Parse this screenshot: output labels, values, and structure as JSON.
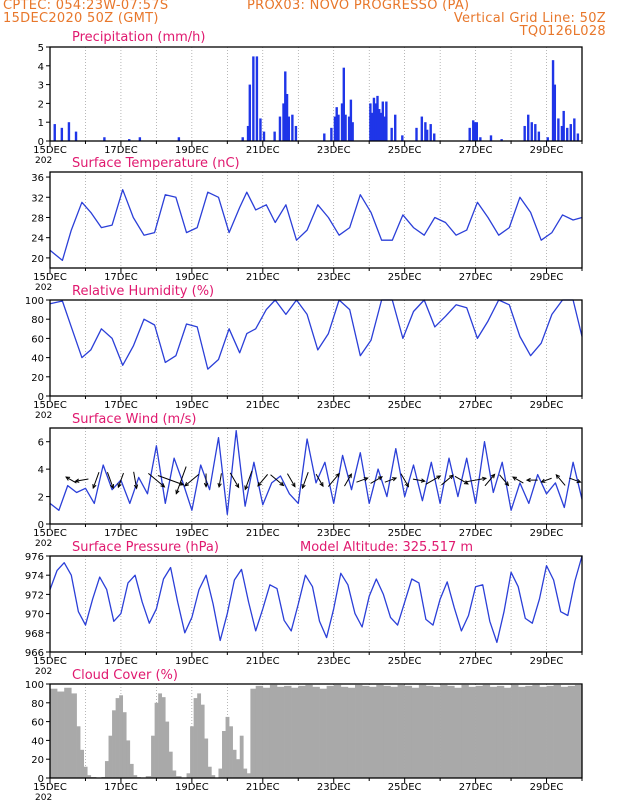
{
  "header": {
    "line1_left": "CPTEC:   054:23W-07:57S",
    "line1_mid": "PROX03: NOVO PROGRESSO (PA)",
    "line2_left": "15DEC2020 50Z (GMT)",
    "line2_right": "Vertical Grid Line: 50Z",
    "line3_right": "TQ0126L028"
  },
  "colors": {
    "header": "#e8772b",
    "title": "#e0196f",
    "series": "#2b3fd8",
    "bars": "#1f35e8",
    "cloud": "#a9a9a9"
  },
  "x_tick_labels": [
    "15DEC",
    "17DEC",
    "19DEC",
    "21DEC",
    "23DEC",
    "25DEC",
    "27DEC",
    "29DEC"
  ],
  "x_cutoff_label": "202",
  "model_altitude": "Model Altitude: 325.517 m",
  "chart_data": [
    {
      "type": "bar",
      "title": "Precipitation (mm/h)",
      "x_range_days": [
        0,
        15
      ],
      "ylim": [
        0,
        5
      ],
      "yticks": [
        "0",
        "1",
        "2",
        "3",
        "4",
        "5"
      ],
      "values": [
        [
          0.1,
          0.9
        ],
        [
          0.3,
          0.7
        ],
        [
          0.5,
          1.0
        ],
        [
          0.7,
          0.5
        ],
        [
          1.5,
          0.2
        ],
        [
          2.2,
          0.1
        ],
        [
          2.5,
          0.2
        ],
        [
          3.6,
          0.2
        ],
        [
          5.4,
          0.2
        ],
        [
          5.55,
          0.8
        ],
        [
          5.6,
          3.0
        ],
        [
          5.7,
          4.5
        ],
        [
          5.8,
          4.5
        ],
        [
          5.9,
          1.2
        ],
        [
          6.0,
          0.5
        ],
        [
          6.3,
          0.5
        ],
        [
          6.45,
          1.3
        ],
        [
          6.55,
          2.0
        ],
        [
          6.6,
          3.7
        ],
        [
          6.65,
          2.5
        ],
        [
          6.7,
          1.3
        ],
        [
          6.8,
          1.4
        ],
        [
          6.9,
          0.8
        ],
        [
          7.7,
          0.4
        ],
        [
          7.9,
          0.7
        ],
        [
          8.0,
          1.3
        ],
        [
          8.05,
          1.8
        ],
        [
          8.1,
          1.4
        ],
        [
          8.2,
          2.0
        ],
        [
          8.25,
          3.9
        ],
        [
          8.3,
          1.4
        ],
        [
          8.4,
          1.3
        ],
        [
          8.45,
          2.2
        ],
        [
          8.5,
          1.0
        ],
        [
          9.0,
          2.0
        ],
        [
          9.05,
          1.5
        ],
        [
          9.1,
          2.3
        ],
        [
          9.15,
          2.0
        ],
        [
          9.2,
          2.4
        ],
        [
          9.25,
          1.7
        ],
        [
          9.3,
          1.5
        ],
        [
          9.35,
          2.1
        ],
        [
          9.4,
          1.3
        ],
        [
          9.45,
          2.1
        ],
        [
          9.6,
          0.7
        ],
        [
          9.7,
          1.4
        ],
        [
          9.9,
          0.3
        ],
        [
          10.3,
          0.7
        ],
        [
          10.45,
          1.3
        ],
        [
          10.55,
          1.0
        ],
        [
          10.6,
          0.6
        ],
        [
          10.7,
          0.9
        ],
        [
          10.8,
          0.4
        ],
        [
          11.8,
          0.7
        ],
        [
          11.9,
          1.1
        ],
        [
          11.95,
          1.0
        ],
        [
          12.0,
          1.0
        ],
        [
          12.1,
          0.2
        ],
        [
          12.4,
          0.3
        ],
        [
          12.7,
          0.1
        ],
        [
          13.35,
          0.8
        ],
        [
          13.45,
          1.4
        ],
        [
          13.55,
          1.0
        ],
        [
          13.65,
          0.9
        ],
        [
          13.75,
          0.5
        ],
        [
          14.0,
          0.2
        ],
        [
          14.15,
          4.3
        ],
        [
          14.2,
          3.0
        ],
        [
          14.3,
          1.2
        ],
        [
          14.4,
          0.8
        ],
        [
          14.45,
          1.6
        ],
        [
          14.55,
          0.7
        ],
        [
          14.65,
          0.9
        ],
        [
          14.75,
          1.2
        ],
        [
          14.85,
          0.4
        ]
      ]
    },
    {
      "type": "line",
      "title": "Surface Temperature (nC)",
      "x_range_days": [
        0,
        15
      ],
      "ylim": [
        18,
        37
      ],
      "yticks": [
        "20",
        "24",
        "28",
        "32",
        "36"
      ],
      "x": [
        0,
        0.35,
        0.6,
        0.9,
        1.15,
        1.45,
        1.75,
        2.05,
        2.35,
        2.65,
        2.95,
        3.25,
        3.55,
        3.85,
        4.15,
        4.45,
        4.75,
        5.05,
        5.35,
        5.55,
        5.8,
        6.1,
        6.35,
        6.65,
        6.95,
        7.25,
        7.55,
        7.85,
        8.15,
        8.45,
        8.75,
        9.05,
        9.35,
        9.65,
        9.95,
        10.25,
        10.55,
        10.85,
        11.15,
        11.45,
        11.75,
        12.05,
        12.35,
        12.65,
        12.95,
        13.25,
        13.55,
        13.85,
        14.15,
        14.45,
        14.75,
        15.0
      ],
      "y": [
        21.5,
        19.5,
        25.5,
        31,
        29,
        26,
        26.5,
        33.5,
        28,
        24.5,
        25,
        32.5,
        32,
        25,
        26,
        33,
        32,
        25,
        30,
        33,
        29.5,
        30.5,
        27,
        30.5,
        23.5,
        25.5,
        30.5,
        28,
        24.5,
        26,
        32.5,
        29,
        23.5,
        23.5,
        28.5,
        26,
        24.5,
        28,
        27,
        24.5,
        25.5,
        31,
        28,
        24.5,
        26,
        32,
        29,
        23.5,
        25,
        28.5,
        27.5,
        28
      ]
    },
    {
      "type": "line",
      "title": "Relative Humidity (%)",
      "x_range_days": [
        0,
        15
      ],
      "ylim": [
        0,
        100
      ],
      "yticks": [
        "0",
        "20",
        "40",
        "60",
        "80",
        "100"
      ],
      "x": [
        0,
        0.35,
        0.6,
        0.9,
        1.15,
        1.45,
        1.75,
        2.05,
        2.35,
        2.65,
        2.95,
        3.25,
        3.55,
        3.85,
        4.15,
        4.45,
        4.75,
        5.05,
        5.35,
        5.55,
        5.8,
        6.1,
        6.35,
        6.65,
        6.95,
        7.25,
        7.55,
        7.85,
        8.15,
        8.45,
        8.75,
        9.05,
        9.35,
        9.65,
        9.95,
        10.25,
        10.55,
        10.85,
        11.15,
        11.45,
        11.75,
        12.05,
        12.35,
        12.65,
        12.95,
        13.25,
        13.55,
        13.85,
        14.15,
        14.45,
        14.75,
        15.0
      ],
      "y": [
        96,
        99,
        72,
        40,
        48,
        70,
        60,
        32,
        52,
        80,
        74,
        35,
        42,
        75,
        72,
        28,
        38,
        70,
        45,
        65,
        70,
        90,
        100,
        85,
        100,
        85,
        48,
        65,
        100,
        90,
        42,
        58,
        100,
        100,
        60,
        88,
        100,
        72,
        83,
        95,
        92,
        60,
        78,
        100,
        95,
        62,
        42,
        55,
        85,
        100,
        100,
        62
      ]
    },
    {
      "type": "line",
      "title": "Surface Wind (m/s)",
      "x_range_days": [
        0,
        15
      ],
      "ylim": [
        0,
        7
      ],
      "yticks": [
        "0",
        "2",
        "4",
        "6"
      ],
      "x": [
        0,
        0.25,
        0.5,
        0.75,
        1.0,
        1.25,
        1.5,
        1.75,
        2.0,
        2.25,
        2.5,
        2.75,
        3.0,
        3.25,
        3.5,
        3.75,
        4.0,
        4.25,
        4.5,
        4.75,
        5.0,
        5.25,
        5.5,
        5.75,
        6.0,
        6.25,
        6.5,
        6.75,
        7.0,
        7.25,
        7.5,
        7.75,
        8.0,
        8.25,
        8.5,
        8.75,
        9.0,
        9.25,
        9.5,
        9.75,
        10.0,
        10.25,
        10.5,
        10.75,
        11.0,
        11.25,
        11.5,
        11.75,
        12.0,
        12.25,
        12.5,
        12.75,
        13.0,
        13.25,
        13.5,
        13.75,
        14.0,
        14.25,
        14.5,
        14.75,
        15.0
      ],
      "y": [
        1.5,
        1.0,
        2.8,
        2.3,
        2.6,
        1.5,
        4.3,
        2.5,
        3.2,
        1.5,
        3.4,
        2.2,
        5.7,
        1.5,
        4.8,
        3.0,
        1.0,
        4.3,
        2.5,
        6.3,
        0.7,
        6.8,
        1.3,
        4.5,
        1.4,
        3.0,
        3.5,
        2.2,
        1.5,
        6.2,
        3.0,
        4.5,
        1.5,
        5.0,
        2.5,
        5.2,
        1.5,
        4.0,
        2.0,
        5.5,
        2.0,
        4.3,
        1.7,
        4.5,
        1.5,
        4.8,
        2.0,
        4.8,
        1.5,
        6.0,
        2.3,
        4.5,
        1.0,
        3.0,
        1.5,
        3.6,
        2.2,
        3.0,
        1.2,
        4.5,
        1.8
      ],
      "arrows_x": [
        0.6,
        0.9,
        1.3,
        1.7,
        2.0,
        2.4,
        3.0,
        3.4,
        3.7,
        4.0,
        4.4,
        4.8,
        5.2,
        5.6,
        6.0,
        6.4,
        6.8,
        7.2,
        7.6,
        8.0,
        8.4,
        8.8,
        9.2,
        9.6,
        10.0,
        10.4,
        10.8,
        11.2,
        11.6,
        12.0,
        12.4,
        12.8,
        13.2,
        13.6,
        14.0,
        14.4,
        14.8
      ],
      "arrows_dir_deg": [
        300,
        260,
        200,
        160,
        200,
        170,
        130,
        110,
        200,
        230,
        180,
        190,
        150,
        200,
        220,
        130,
        150,
        200,
        150,
        40,
        30,
        70,
        60,
        70,
        150,
        100,
        60,
        50,
        120,
        80,
        40,
        140,
        300,
        270,
        250,
        320,
        110
      ],
      "arrows_speed": [
        1.0,
        1.2,
        1.8,
        1.8,
        1.5,
        1.8,
        2.5,
        3.5,
        3.8,
        2.0,
        1.2,
        1.3,
        1.8,
        2.3,
        1.5,
        1.8,
        1.5,
        1.8,
        1.3,
        1.8,
        1.3,
        1.0,
        1.2,
        1.0,
        1.5,
        1.0,
        1.8,
        1.5,
        1.5,
        2.5,
        1.5,
        1.3,
        1.0,
        0.8,
        0.8,
        1.3,
        1.0
      ]
    },
    {
      "type": "line",
      "title": "Surface Pressure (hPa)",
      "x_range_days": [
        0,
        15
      ],
      "ylim": [
        966,
        976
      ],
      "yticks": [
        "966",
        "968",
        "970",
        "972",
        "974",
        "976"
      ],
      "x": [
        0,
        0.2,
        0.4,
        0.6,
        0.8,
        1.0,
        1.2,
        1.4,
        1.6,
        1.8,
        2.0,
        2.2,
        2.4,
        2.6,
        2.8,
        3.0,
        3.2,
        3.4,
        3.6,
        3.8,
        4.0,
        4.2,
        4.4,
        4.6,
        4.8,
        5.0,
        5.2,
        5.4,
        5.6,
        5.8,
        6.0,
        6.2,
        6.4,
        6.6,
        6.8,
        7.0,
        7.2,
        7.4,
        7.6,
        7.8,
        8.0,
        8.2,
        8.4,
        8.6,
        8.8,
        9.0,
        9.2,
        9.4,
        9.6,
        9.8,
        10.0,
        10.2,
        10.4,
        10.6,
        10.8,
        11.0,
        11.2,
        11.4,
        11.6,
        11.8,
        12.0,
        12.2,
        12.4,
        12.6,
        12.8,
        13.0,
        13.2,
        13.4,
        13.6,
        13.8,
        14.0,
        14.2,
        14.4,
        14.6,
        14.8,
        15.0
      ],
      "y": [
        972.5,
        974.5,
        975.3,
        974,
        970.2,
        968.8,
        971.5,
        973.8,
        972.5,
        969.2,
        970,
        973.2,
        974,
        971.2,
        969,
        970.5,
        973.6,
        974.8,
        971.2,
        968,
        969.6,
        972.5,
        974,
        971,
        967.2,
        970,
        973.5,
        974.6,
        971.2,
        968.2,
        970.5,
        973,
        972.6,
        969.3,
        968.2,
        971,
        974,
        972.8,
        969.2,
        967.5,
        970.5,
        974.2,
        973,
        970,
        968.6,
        971.8,
        973.6,
        972,
        969.6,
        968.8,
        971.2,
        973.6,
        973.2,
        969.4,
        968.8,
        971.5,
        973.3,
        970.6,
        968.2,
        969.8,
        972.8,
        973,
        969.2,
        967,
        970.2,
        974.3,
        972.8,
        969.5,
        969,
        971.5,
        975,
        973.5,
        970.2,
        969.8,
        973.4,
        976
      ]
    },
    {
      "type": "bar",
      "title": "Cloud Cover (%)",
      "x_range_days": [
        0,
        15
      ],
      "ylim": [
        0,
        100
      ],
      "yticks": [
        "0",
        "20",
        "40",
        "60",
        "80",
        "100"
      ],
      "values": [
        [
          0.0,
          95
        ],
        [
          0.2,
          92
        ],
        [
          0.4,
          96
        ],
        [
          0.6,
          90
        ],
        [
          0.75,
          55
        ],
        [
          0.85,
          30
        ],
        [
          0.95,
          12
        ],
        [
          1.05,
          3
        ],
        [
          1.15,
          1
        ],
        [
          1.3,
          0
        ],
        [
          1.45,
          1
        ],
        [
          1.55,
          18
        ],
        [
          1.65,
          45
        ],
        [
          1.75,
          72
        ],
        [
          1.85,
          85
        ],
        [
          1.95,
          88
        ],
        [
          2.05,
          70
        ],
        [
          2.15,
          40
        ],
        [
          2.25,
          15
        ],
        [
          2.35,
          3
        ],
        [
          2.45,
          1
        ],
        [
          2.55,
          0
        ],
        [
          2.7,
          2
        ],
        [
          2.85,
          45
        ],
        [
          2.95,
          80
        ],
        [
          3.05,
          90
        ],
        [
          3.15,
          86
        ],
        [
          3.25,
          60
        ],
        [
          3.35,
          28
        ],
        [
          3.45,
          8
        ],
        [
          3.55,
          2
        ],
        [
          3.7,
          0
        ],
        [
          3.85,
          5
        ],
        [
          3.95,
          55
        ],
        [
          4.05,
          85
        ],
        [
          4.15,
          90
        ],
        [
          4.25,
          78
        ],
        [
          4.35,
          42
        ],
        [
          4.45,
          12
        ],
        [
          4.55,
          3
        ],
        [
          4.65,
          0
        ],
        [
          4.75,
          10
        ],
        [
          4.85,
          50
        ],
        [
          4.95,
          65
        ],
        [
          5.05,
          55
        ],
        [
          5.15,
          30
        ],
        [
          5.25,
          20
        ],
        [
          5.35,
          45
        ],
        [
          5.45,
          10
        ],
        [
          5.55,
          5
        ],
        [
          5.65,
          95
        ],
        [
          5.8,
          98
        ],
        [
          6.0,
          96
        ],
        [
          6.2,
          99
        ],
        [
          6.4,
          97
        ],
        [
          6.6,
          98
        ],
        [
          6.8,
          96
        ],
        [
          7.0,
          98
        ],
        [
          7.2,
          99
        ],
        [
          7.4,
          97
        ],
        [
          7.6,
          95
        ],
        [
          7.8,
          98
        ],
        [
          8.0,
          99
        ],
        [
          8.2,
          97
        ],
        [
          8.4,
          96
        ],
        [
          8.6,
          99
        ],
        [
          8.8,
          98
        ],
        [
          9.0,
          97
        ],
        [
          9.2,
          99
        ],
        [
          9.4,
          98
        ],
        [
          9.6,
          97
        ],
        [
          9.8,
          99
        ],
        [
          10.0,
          98
        ],
        [
          10.2,
          96
        ],
        [
          10.4,
          99
        ],
        [
          10.6,
          98
        ],
        [
          10.8,
          97
        ],
        [
          11.0,
          99
        ],
        [
          11.2,
          98
        ],
        [
          11.4,
          96
        ],
        [
          11.6,
          99
        ],
        [
          11.8,
          97
        ],
        [
          12.0,
          98
        ],
        [
          12.2,
          99
        ],
        [
          12.4,
          97
        ],
        [
          12.6,
          98
        ],
        [
          12.8,
          96
        ],
        [
          13.0,
          99
        ],
        [
          13.2,
          97
        ],
        [
          13.4,
          98
        ],
        [
          13.6,
          99
        ],
        [
          13.8,
          97
        ],
        [
          14.0,
          98
        ],
        [
          14.2,
          99
        ],
        [
          14.4,
          97
        ],
        [
          14.6,
          98
        ],
        [
          14.8,
          99
        ]
      ]
    }
  ]
}
